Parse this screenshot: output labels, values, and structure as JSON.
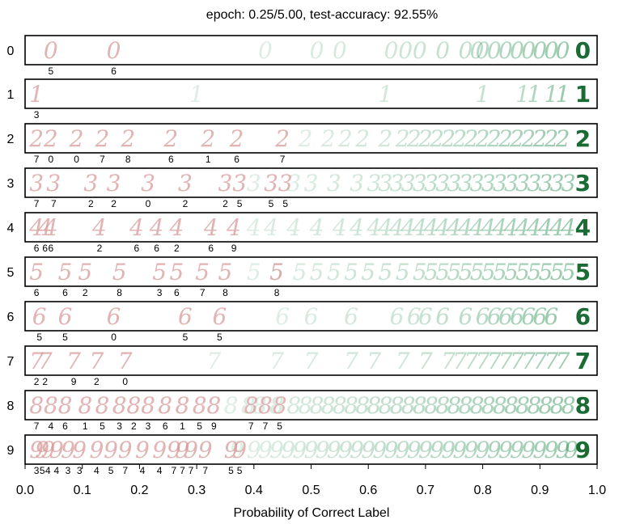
{
  "chart_data": {
    "type": "scatter",
    "title": "epoch: 0.25/5.00, test-accuracy: 92.55%",
    "xlabel": "Probability of Correct Label",
    "xlim": [
      0.0,
      1.0
    ],
    "xticks": [
      "0.0",
      "0.1",
      "0.2",
      "0.3",
      "0.4",
      "0.5",
      "0.6",
      "0.7",
      "0.8",
      "0.9",
      "1.0"
    ],
    "rows": [
      "0",
      "1",
      "2",
      "3",
      "4",
      "5",
      "6",
      "7",
      "8",
      "9"
    ],
    "colors": {
      "wrong": "#d89a9a",
      "correct": "#3f9a63",
      "prototype": "#1b6b34"
    },
    "prototype_x": 0.975,
    "samples": [
      {
        "row": "0",
        "misclassified": [
          {
            "x": 0.045,
            "pred": "5"
          },
          {
            "x": 0.155,
            "pred": "6"
          }
        ],
        "correct_x": [
          0.42,
          0.51,
          0.55,
          0.64,
          0.665,
          0.69,
          0.73,
          0.77,
          0.79,
          0.8,
          0.82,
          0.84,
          0.86,
          0.88,
          0.9,
          0.92,
          0.94
        ]
      },
      {
        "row": "1",
        "misclassified": [
          {
            "x": 0.02,
            "pred": "3"
          }
        ],
        "correct_x": [
          0.3,
          0.63,
          0.8,
          0.87,
          0.89,
          0.92,
          0.94
        ]
      },
      {
        "row": "2",
        "misclassified": [
          {
            "x": 0.02,
            "pred": "7"
          },
          {
            "x": 0.045,
            "pred": "0"
          },
          {
            "x": 0.09,
            "pred": "0"
          },
          {
            "x": 0.135,
            "pred": "7"
          },
          {
            "x": 0.18,
            "pred": "8"
          },
          {
            "x": 0.255,
            "pred": "6"
          },
          {
            "x": 0.32,
            "pred": "1"
          },
          {
            "x": 0.37,
            "pred": "6"
          },
          {
            "x": 0.45,
            "pred": "7"
          }
        ],
        "correct_x": [
          0.49,
          0.53,
          0.56,
          0.59,
          0.63,
          0.66,
          0.68,
          0.7,
          0.72,
          0.74,
          0.76,
          0.78,
          0.8,
          0.82,
          0.84,
          0.86,
          0.88,
          0.9,
          0.92,
          0.94
        ]
      },
      {
        "row": "3",
        "misclassified": [
          {
            "x": 0.02,
            "pred": "7"
          },
          {
            "x": 0.05,
            "pred": "7"
          },
          {
            "x": 0.115,
            "pred": "2"
          },
          {
            "x": 0.155,
            "pred": "2"
          },
          {
            "x": 0.215,
            "pred": "0"
          },
          {
            "x": 0.28,
            "pred": "2"
          },
          {
            "x": 0.35,
            "pred": "2"
          },
          {
            "x": 0.375,
            "pred": "5"
          },
          {
            "x": 0.43,
            "pred": "5"
          },
          {
            "x": 0.455,
            "pred": "5"
          }
        ],
        "correct_x": [
          0.4,
          0.47,
          0.5,
          0.54,
          0.58,
          0.61,
          0.63,
          0.65,
          0.67,
          0.69,
          0.71,
          0.73,
          0.75,
          0.77,
          0.79,
          0.81,
          0.83,
          0.85,
          0.87,
          0.89,
          0.91,
          0.93,
          0.95
        ]
      },
      {
        "row": "4",
        "misclassified": [
          {
            "x": 0.02,
            "pred": "6"
          },
          {
            "x": 0.035,
            "pred": "6"
          },
          {
            "x": 0.045,
            "pred": "6"
          },
          {
            "x": 0.13,
            "pred": "2"
          },
          {
            "x": 0.195,
            "pred": "6"
          },
          {
            "x": 0.23,
            "pred": "6"
          },
          {
            "x": 0.265,
            "pred": "2"
          },
          {
            "x": 0.325,
            "pred": "6"
          },
          {
            "x": 0.365,
            "pred": "9"
          }
        ],
        "correct_x": [
          0.4,
          0.43,
          0.47,
          0.51,
          0.55,
          0.58,
          0.61,
          0.63,
          0.65,
          0.67,
          0.69,
          0.71,
          0.73,
          0.75,
          0.77,
          0.79,
          0.81,
          0.83,
          0.85,
          0.87,
          0.89,
          0.91,
          0.93,
          0.95
        ]
      },
      {
        "row": "5",
        "misclassified": [
          {
            "x": 0.02,
            "pred": "6"
          },
          {
            "x": 0.07,
            "pred": "6"
          },
          {
            "x": 0.105,
            "pred": "2"
          },
          {
            "x": 0.165,
            "pred": "8"
          },
          {
            "x": 0.235,
            "pred": "3"
          },
          {
            "x": 0.265,
            "pred": "6"
          },
          {
            "x": 0.31,
            "pred": "7"
          },
          {
            "x": 0.35,
            "pred": "8"
          },
          {
            "x": 0.44,
            "pred": "8"
          }
        ],
        "correct_x": [
          0.4,
          0.44,
          0.48,
          0.51,
          0.54,
          0.57,
          0.6,
          0.63,
          0.66,
          0.69,
          0.71,
          0.73,
          0.75,
          0.77,
          0.79,
          0.81,
          0.83,
          0.85,
          0.87,
          0.89,
          0.91,
          0.93,
          0.95
        ]
      },
      {
        "row": "6",
        "misclassified": [
          {
            "x": 0.025,
            "pred": "5"
          },
          {
            "x": 0.07,
            "pred": "5"
          },
          {
            "x": 0.155,
            "pred": "0"
          },
          {
            "x": 0.28,
            "pred": "5"
          },
          {
            "x": 0.34,
            "pred": "5"
          }
        ],
        "correct_x": [
          0.45,
          0.5,
          0.57,
          0.65,
          0.68,
          0.7,
          0.73,
          0.77,
          0.8,
          0.82,
          0.84,
          0.86,
          0.88,
          0.9,
          0.92
        ]
      },
      {
        "row": "7",
        "misclassified": [
          {
            "x": 0.02,
            "pred": "2"
          },
          {
            "x": 0.035,
            "pred": "2"
          },
          {
            "x": 0.085,
            "pred": "9"
          },
          {
            "x": 0.125,
            "pred": "2"
          },
          {
            "x": 0.175,
            "pred": "0"
          }
        ],
        "correct_x": [
          0.33,
          0.44,
          0.5,
          0.57,
          0.61,
          0.66,
          0.7,
          0.74,
          0.76,
          0.78,
          0.8,
          0.82,
          0.84,
          0.86,
          0.88,
          0.9,
          0.92,
          0.94
        ]
      },
      {
        "row": "8",
        "misclassified": [
          {
            "x": 0.02,
            "pred": "7"
          },
          {
            "x": 0.045,
            "pred": "4"
          },
          {
            "x": 0.07,
            "pred": "6"
          },
          {
            "x": 0.105,
            "pred": "1"
          },
          {
            "x": 0.135,
            "pred": "5"
          },
          {
            "x": 0.165,
            "pred": "3"
          },
          {
            "x": 0.19,
            "pred": "2"
          },
          {
            "x": 0.215,
            "pred": "3"
          },
          {
            "x": 0.245,
            "pred": "6"
          },
          {
            "x": 0.275,
            "pred": "1"
          },
          {
            "x": 0.305,
            "pred": "5"
          },
          {
            "x": 0.33,
            "pred": "9"
          },
          {
            "x": 0.395,
            "pred": "7"
          },
          {
            "x": 0.42,
            "pred": "7"
          },
          {
            "x": 0.445,
            "pred": "5"
          }
        ],
        "correct_x": [
          0.36,
          0.39,
          0.41,
          0.44,
          0.47,
          0.49,
          0.51,
          0.53,
          0.55,
          0.57,
          0.59,
          0.61,
          0.63,
          0.65,
          0.67,
          0.69,
          0.71,
          0.73,
          0.75,
          0.77,
          0.79,
          0.81,
          0.83,
          0.85,
          0.87,
          0.89,
          0.91,
          0.93,
          0.95
        ]
      },
      {
        "row": "9",
        "misclassified": [
          {
            "x": 0.02,
            "pred": "3"
          },
          {
            "x": 0.03,
            "pred": "5"
          },
          {
            "x": 0.04,
            "pred": "4"
          },
          {
            "x": 0.055,
            "pred": "4"
          },
          {
            "x": 0.075,
            "pred": "3"
          },
          {
            "x": 0.095,
            "pred": "3"
          },
          {
            "x": 0.125,
            "pred": "4"
          },
          {
            "x": 0.15,
            "pred": "5"
          },
          {
            "x": 0.175,
            "pred": "7"
          },
          {
            "x": 0.205,
            "pred": "4"
          },
          {
            "x": 0.235,
            "pred": "4"
          },
          {
            "x": 0.26,
            "pred": "7"
          },
          {
            "x": 0.275,
            "pred": "7"
          },
          {
            "x": 0.29,
            "pred": "7"
          },
          {
            "x": 0.315,
            "pred": "7"
          },
          {
            "x": 0.36,
            "pred": "5"
          },
          {
            "x": 0.375,
            "pred": "5"
          }
        ],
        "correct_x": [
          0.37,
          0.4,
          0.42,
          0.44,
          0.46,
          0.48,
          0.5,
          0.52,
          0.54,
          0.56,
          0.58,
          0.6,
          0.62,
          0.64,
          0.66,
          0.68,
          0.7,
          0.72,
          0.74,
          0.76,
          0.78,
          0.8,
          0.82,
          0.84,
          0.86,
          0.88,
          0.9,
          0.92,
          0.94,
          0.955
        ]
      }
    ]
  }
}
